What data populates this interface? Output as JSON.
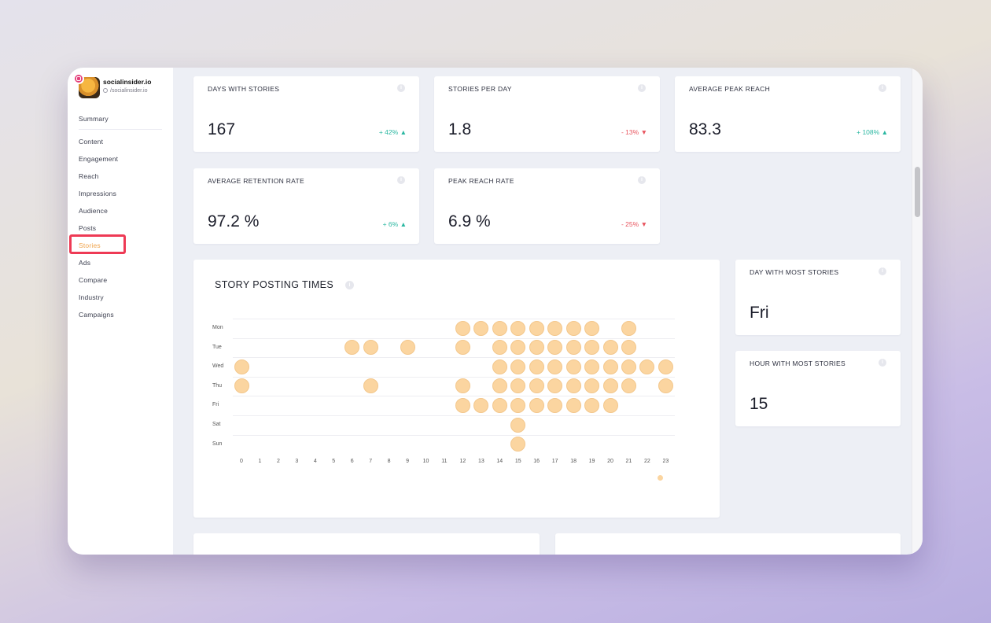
{
  "brand": {
    "name": "socialinsider.io",
    "handle": "/socialinsider.io"
  },
  "nav": [
    {
      "label": "Summary"
    },
    {
      "label": "Content"
    },
    {
      "label": "Engagement"
    },
    {
      "label": "Reach"
    },
    {
      "label": "Impressions"
    },
    {
      "label": "Audience"
    },
    {
      "label": "Posts"
    },
    {
      "label": "Stories",
      "active": true
    },
    {
      "label": "Ads"
    },
    {
      "label": "Compare"
    },
    {
      "label": "Industry"
    },
    {
      "label": "Campaigns"
    }
  ],
  "kpis": [
    {
      "label": "DAYS WITH STORIES",
      "value": "167",
      "change": "+ 42%",
      "direction": "up"
    },
    {
      "label": "STORIES PER DAY",
      "value": "1.8",
      "change": "- 13%",
      "direction": "down"
    },
    {
      "label": "AVERAGE PEAK REACH",
      "value": "83.3",
      "change": "+ 108%",
      "direction": "up"
    },
    {
      "label": "AVERAGE RETENTION RATE",
      "value": "97.2 %",
      "change": "+ 6%",
      "direction": "up"
    },
    {
      "label": "PEAK REACH RATE",
      "value": "6.9 %",
      "change": "- 25%",
      "direction": "down"
    }
  ],
  "side_kpis": [
    {
      "label": "DAY WITH MOST STORIES",
      "value": "Fri"
    },
    {
      "label": "HOUR WITH MOST STORIES",
      "value": "15"
    }
  ],
  "chart": {
    "title": "STORY POSTING TIMES"
  },
  "colors": {
    "accent": "#f0a34a",
    "bubble": "#fbd5a0",
    "up": "#2ab7a1",
    "down": "#e8555f",
    "highlight": "#ee3a55"
  },
  "chart_data": {
    "type": "scatter",
    "title": "STORY POSTING TIMES",
    "days": [
      "Mon",
      "Tue",
      "Wed",
      "Thu",
      "Fri",
      "Sat",
      "Sun"
    ],
    "hours": [
      "0",
      "1",
      "2",
      "3",
      "4",
      "5",
      "6",
      "7",
      "8",
      "9",
      "10",
      "11",
      "12",
      "13",
      "14",
      "15",
      "16",
      "17",
      "18",
      "19",
      "20",
      "21",
      "22",
      "23"
    ],
    "points": {
      "Mon": [
        12,
        13,
        14,
        15,
        16,
        17,
        18,
        19,
        21
      ],
      "Tue": [
        6,
        7,
        9,
        12,
        14,
        15,
        16,
        17,
        18,
        19,
        20,
        21
      ],
      "Wed": [
        0,
        14,
        15,
        16,
        17,
        18,
        19,
        20,
        21,
        22,
        23
      ],
      "Thu": [
        0,
        7,
        12,
        14,
        15,
        16,
        17,
        18,
        19,
        20,
        21,
        23
      ],
      "Fri": [
        12,
        13,
        14,
        15,
        16,
        17,
        18,
        19,
        20
      ],
      "Sat": [
        15
      ],
      "Sun": [
        15
      ]
    }
  }
}
